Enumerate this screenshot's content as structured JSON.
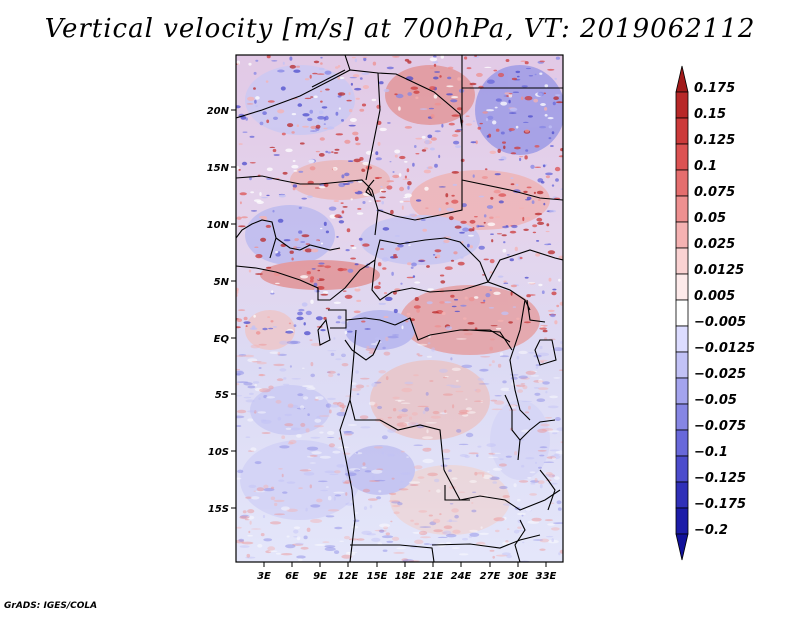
{
  "title": "Vertical velocity [m/s] at 700hPa, VT: 2019062112",
  "credit": "GrADS: IGES/COLA",
  "lat_labels": [
    "20N",
    "15N",
    "10N",
    "5N",
    "EQ",
    "5S",
    "10S",
    "15S"
  ],
  "lon_labels": [
    "3E",
    "6E",
    "9E",
    "12E",
    "15E",
    "18E",
    "21E",
    "24E",
    "27E",
    "30E",
    "33E"
  ],
  "legend": {
    "labels": [
      "0.175",
      "0.15",
      "0.125",
      "0.1",
      "0.075",
      "0.05",
      "0.025",
      "0.0125",
      "0.005",
      "−0.005",
      "−0.0125",
      "−0.025",
      "−0.05",
      "−0.075",
      "−0.1",
      "−0.125",
      "−0.175",
      "−0.2"
    ],
    "colors": [
      "#a11a1a",
      "#b82828",
      "#cc3a3a",
      "#dc5252",
      "#e56e6e",
      "#ee9090",
      "#f5b2b2",
      "#fad2d2",
      "#fdeaea",
      "#ffffff",
      "#dcdcff",
      "#c2c2f6",
      "#a4a4ee",
      "#8686e4",
      "#6868da",
      "#4c4ccc",
      "#3030b8",
      "#1c1ca8",
      "#11119a"
    ]
  }
}
